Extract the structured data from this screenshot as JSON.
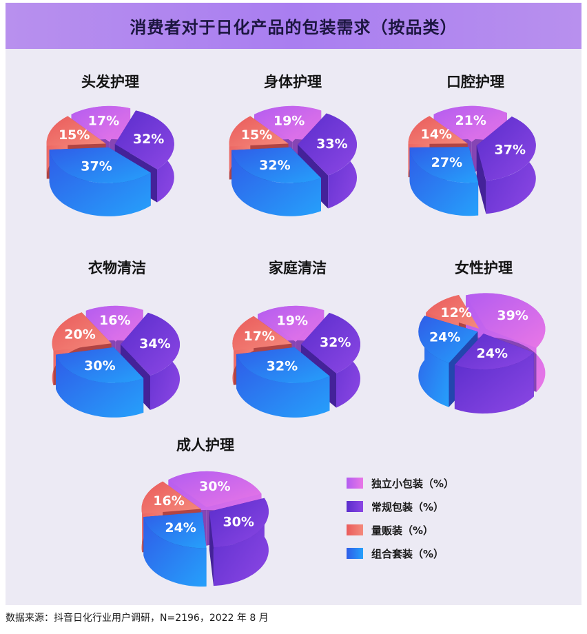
{
  "title": "消费者对于日化产品的包装需求（按品类）",
  "source": "数据来源：抖音日化行业用户调研，N=2196，2022 年 8 月",
  "colors": {
    "独立小包装": [
      "#b35cf0",
      "#e977e6"
    ],
    "常规包装": [
      "#5a2dcc",
      "#8c47e4"
    ],
    "量贩装": [
      "#ea5b5b",
      "#f48a7c"
    ],
    "组合套装": [
      "#2f5de8",
      "#26a0fb"
    ]
  },
  "legend": [
    {
      "key": "独立小包装",
      "label": "独立小包装（%）"
    },
    {
      "key": "常规包装",
      "label": "常规包装（%）"
    },
    {
      "key": "量贩装",
      "label": "量贩装（%）"
    },
    {
      "key": "组合套装",
      "label": "组合套装（%）"
    }
  ],
  "chart_data": [
    {
      "type": "pie",
      "title": "头发护理",
      "categories": [
        "独立小包装",
        "常规包装",
        "组合套装",
        "量贩装"
      ],
      "values": [
        17,
        32,
        37,
        15
      ],
      "labels": [
        "17%",
        "32%",
        "37%",
        "15%"
      ]
    },
    {
      "type": "pie",
      "title": "身体护理",
      "categories": [
        "独立小包装",
        "常规包装",
        "组合套装",
        "量贩装"
      ],
      "values": [
        19,
        33,
        32,
        15
      ],
      "labels": [
        "19%",
        "33%",
        "32%",
        "15%"
      ]
    },
    {
      "type": "pie",
      "title": "口腔护理",
      "categories": [
        "独立小包装",
        "常规包装",
        "组合套装",
        "量贩装"
      ],
      "values": [
        21,
        37,
        27,
        14
      ],
      "labels": [
        "21%",
        "37%",
        "27%",
        "14%"
      ]
    },
    {
      "type": "pie",
      "title": "衣物清洁",
      "categories": [
        "独立小包装",
        "常规包装",
        "组合套装",
        "量贩装"
      ],
      "values": [
        16,
        34,
        30,
        20
      ],
      "labels": [
        "16%",
        "34%",
        "30%",
        "20%"
      ]
    },
    {
      "type": "pie",
      "title": "家庭清洁",
      "categories": [
        "独立小包装",
        "常规包装",
        "组合套装",
        "量贩装"
      ],
      "values": [
        19,
        32,
        32,
        17
      ],
      "labels": [
        "19%",
        "32%",
        "32%",
        "17%"
      ]
    },
    {
      "type": "pie",
      "title": "女性护理",
      "categories": [
        "独立小包装",
        "常规包装",
        "组合套装",
        "量贩装"
      ],
      "values": [
        39,
        24,
        24,
        12
      ],
      "labels": [
        "39%",
        "24%",
        "24%",
        "12%"
      ]
    },
    {
      "type": "pie",
      "title": "成人护理",
      "categories": [
        "独立小包装",
        "常规包装",
        "组合套装",
        "量贩装"
      ],
      "values": [
        30,
        30,
        24,
        16
      ],
      "labels": [
        "30%",
        "30%",
        "24%",
        "16%"
      ]
    }
  ]
}
